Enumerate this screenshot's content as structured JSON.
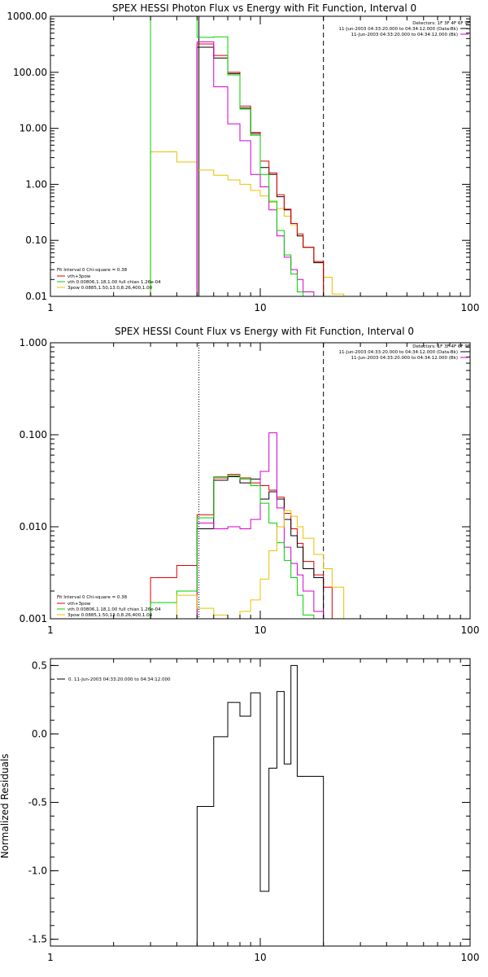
{
  "chart_data": [
    {
      "type": "line",
      "title": "SPEX HESSI Photon Flux vs Energy with Fit Function, Interval 0",
      "xscale": "log",
      "yscale": "log",
      "xlim": [
        1,
        100
      ],
      "ylim": [
        0.01,
        1000
      ],
      "xticks": [
        1,
        10,
        100
      ],
      "xtick_labels": [
        "1",
        "10",
        "100"
      ],
      "yticks": [
        0.01,
        0.1,
        1,
        10,
        100,
        1000
      ],
      "ytick_labels": [
        "0.01",
        "0.10",
        "1.00",
        "10.00",
        "100.00",
        "1000.00"
      ],
      "grid": false,
      "vlines": [
        {
          "x": 5.1,
          "style": "solid",
          "color": "#000000"
        },
        {
          "x": 20,
          "style": "dashed",
          "color": "#000000"
        }
      ],
      "header_lines": [
        "Detectors: 1F 3F 4F 6F 9F",
        "11-Jun-2003 04:33:20.000 to 04:34:12.000 (Data-Bk)",
        "11-Jun-2003 04:33:20.000 to 04:34:12.000 (Bk)"
      ],
      "legend_title": "Fit Interval  0   Chi-square = 0.38",
      "legend_entries": [
        {
          "label": "vth+3pow",
          "color": "#e00000"
        },
        {
          "label": "vth 0.00806,1.18,1.00  full chian 1.26e-04",
          "color": "#00d000"
        },
        {
          "label": "3pow 0.0885,1.50,13.0,8.26,400,1.00",
          "color": "#e8c000"
        }
      ],
      "series": [
        {
          "color": "#e8c000",
          "edges": [
            3,
            4,
            5,
            6,
            7,
            8,
            9,
            10,
            11,
            12,
            13,
            14,
            15,
            16,
            18,
            20,
            22,
            25
          ],
          "values": [
            3.8,
            2.5,
            1.8,
            1.45,
            1.2,
            1.0,
            0.78,
            0.62,
            0.48,
            0.37,
            0.27,
            0.19,
            0.12,
            0.075,
            0.04,
            0.022,
            0.011
          ]
        },
        {
          "color": "#000000",
          "edges": [
            5,
            6,
            7,
            8,
            9,
            10,
            11,
            12,
            13,
            14,
            15,
            16,
            18,
            20
          ],
          "values": [
            280,
            180,
            95,
            23,
            8,
            2,
            1.5,
            0.6,
            0.35,
            0.2,
            0.12,
            0.075,
            0.04
          ]
        },
        {
          "color": "#e00000",
          "edges": [
            5,
            6,
            7,
            8,
            9,
            10,
            11,
            12,
            13,
            14,
            15,
            16,
            18,
            20
          ],
          "values": [
            320,
            200,
            100,
            25,
            8.5,
            2.6,
            1.6,
            0.65,
            0.36,
            0.2,
            0.13,
            0.075,
            0.042
          ]
        },
        {
          "color": "#d000d0",
          "edges": [
            5,
            6,
            7,
            8,
            9,
            10,
            11,
            12,
            13,
            14,
            15,
            16,
            18,
            20
          ],
          "values": [
            350,
            55,
            12,
            6,
            1.5,
            0.9,
            0.35,
            0.12,
            0.05,
            0.03,
            0.02,
            0.012,
            0.005
          ]
        },
        {
          "color": "#00d000",
          "edges": [
            3,
            5,
            6,
            7,
            8,
            9,
            10,
            11,
            12,
            13,
            14,
            15,
            16,
            18
          ],
          "values": [
            1000,
            420,
            430,
            90,
            22,
            7.5,
            1.5,
            0.5,
            0.15,
            0.055,
            0.025,
            0.012,
            0.005
          ]
        }
      ]
    },
    {
      "type": "line",
      "title": "SPEX HESSI Count Flux vs Energy with Fit Function, Interval 0",
      "xscale": "log",
      "yscale": "log",
      "xlim": [
        1,
        100
      ],
      "ylim": [
        0.001,
        1
      ],
      "xticks": [
        1,
        10,
        100
      ],
      "xtick_labels": [
        "1",
        "10",
        "100"
      ],
      "yticks": [
        0.001,
        0.01,
        0.1,
        1
      ],
      "ytick_labels": [
        "0.001",
        "0.010",
        "0.100",
        "1.000"
      ],
      "ylabel": "",
      "grid": false,
      "vlines": [
        {
          "x": 5.1,
          "style": "dotted",
          "color": "#000000"
        },
        {
          "x": 20,
          "style": "dashed",
          "color": "#000000"
        }
      ],
      "header_lines": [
        "Detectors: 1F 3F 4F 6F 9F",
        "11-Jun-2003 04:33:20.000 to 04:34:12.000 (Data-Bk)",
        "11-Jun-2003 04:33:20.000 to 04:34:12.000 (Bk)"
      ],
      "legend_title": "Fit Interval  0   Chi-square = 0.38",
      "legend_entries": [
        {
          "label": "vth+3pow",
          "color": "#e00000"
        },
        {
          "label": "vth 0.00806,1.18,1.00  full chian 1.26e-04",
          "color": "#00d000"
        },
        {
          "label": "3pow 0.0885,1.50,13.0,8.26,400,1.00",
          "color": "#e8c000"
        }
      ],
      "series": [
        {
          "color": "#e00000",
          "edges": [
            3,
            4,
            5,
            6,
            7,
            8,
            9,
            10,
            11,
            12,
            13,
            14,
            15,
            16,
            18,
            20,
            22
          ],
          "values": [
            0.0028,
            0.0038,
            0.0135,
            0.034,
            0.037,
            0.034,
            0.03,
            0.028,
            0.025,
            0.021,
            0.014,
            0.0095,
            0.0066,
            0.0042,
            0.003,
            0.0022
          ]
        },
        {
          "color": "#000000",
          "edges": [
            5,
            6,
            7,
            8,
            9,
            10,
            11,
            12,
            13,
            14,
            15,
            16,
            18,
            20
          ],
          "values": [
            0.0095,
            0.032,
            0.035,
            0.03,
            0.033,
            0.02,
            0.024,
            0.02,
            0.012,
            0.008,
            0.006,
            0.0035,
            0.0028
          ]
        },
        {
          "color": "#d000d0",
          "edges": [
            5,
            6,
            7,
            8,
            9,
            10,
            11,
            12,
            13,
            14,
            15,
            16,
            18,
            20
          ],
          "values": [
            0.011,
            0.0095,
            0.01,
            0.0095,
            0.012,
            0.04,
            0.105,
            0.016,
            0.006,
            0.004,
            0.003,
            0.002,
            0.0012
          ]
        },
        {
          "color": "#00d000",
          "edges": [
            3,
            4,
            5,
            6,
            7,
            8,
            9,
            10,
            11,
            12,
            13,
            14,
            15,
            16,
            18
          ],
          "values": [
            0.0015,
            0.002,
            0.0125,
            0.035,
            0.036,
            0.033,
            0.028,
            0.018,
            0.011,
            0.0067,
            0.0043,
            0.0028,
            0.0018,
            0.0011
          ]
        },
        {
          "color": "#e8c000",
          "edges": [
            4,
            5,
            6,
            7,
            8,
            9,
            10,
            11,
            12,
            13,
            14,
            15,
            16,
            18,
            20,
            22,
            25
          ],
          "values": [
            0.0018,
            0.0013,
            0.0011,
            0.001,
            0.0012,
            0.0016,
            0.0027,
            0.0055,
            0.01,
            0.015,
            0.013,
            0.01,
            0.0075,
            0.005,
            0.0035,
            0.0022
          ]
        }
      ]
    },
    {
      "type": "line",
      "title": "",
      "xscale": "log",
      "yscale": "linear",
      "xlim": [
        1,
        100
      ],
      "ylim": [
        -1.55,
        0.55
      ],
      "xticks": [
        1,
        10,
        100
      ],
      "xtick_labels": [
        "1",
        "10",
        "100"
      ],
      "yticks": [
        -1.5,
        -1.0,
        -0.5,
        0.0,
        0.5
      ],
      "ytick_labels": [
        "-1.5",
        "-1.0",
        "-0.5",
        "0.0",
        "0.5"
      ],
      "ylabel": "Normalized Residuals",
      "grid": false,
      "legend_entries": [
        {
          "label": "0. 11-Jun-2003 04:33:20.000 to 04:34:12.000",
          "color": "#000000"
        }
      ],
      "series": [
        {
          "color": "#000000",
          "edges": [
            5,
            6,
            7,
            8,
            9,
            10,
            11,
            12,
            13,
            14,
            15,
            16,
            18,
            20
          ],
          "values": [
            -0.53,
            -0.02,
            0.23,
            0.13,
            0.3,
            -1.15,
            -0.25,
            0.31,
            -0.22,
            0.5,
            -0.31,
            -0.31,
            -0.31
          ],
          "drop_to_bottom_at_edges": true
        }
      ]
    }
  ]
}
